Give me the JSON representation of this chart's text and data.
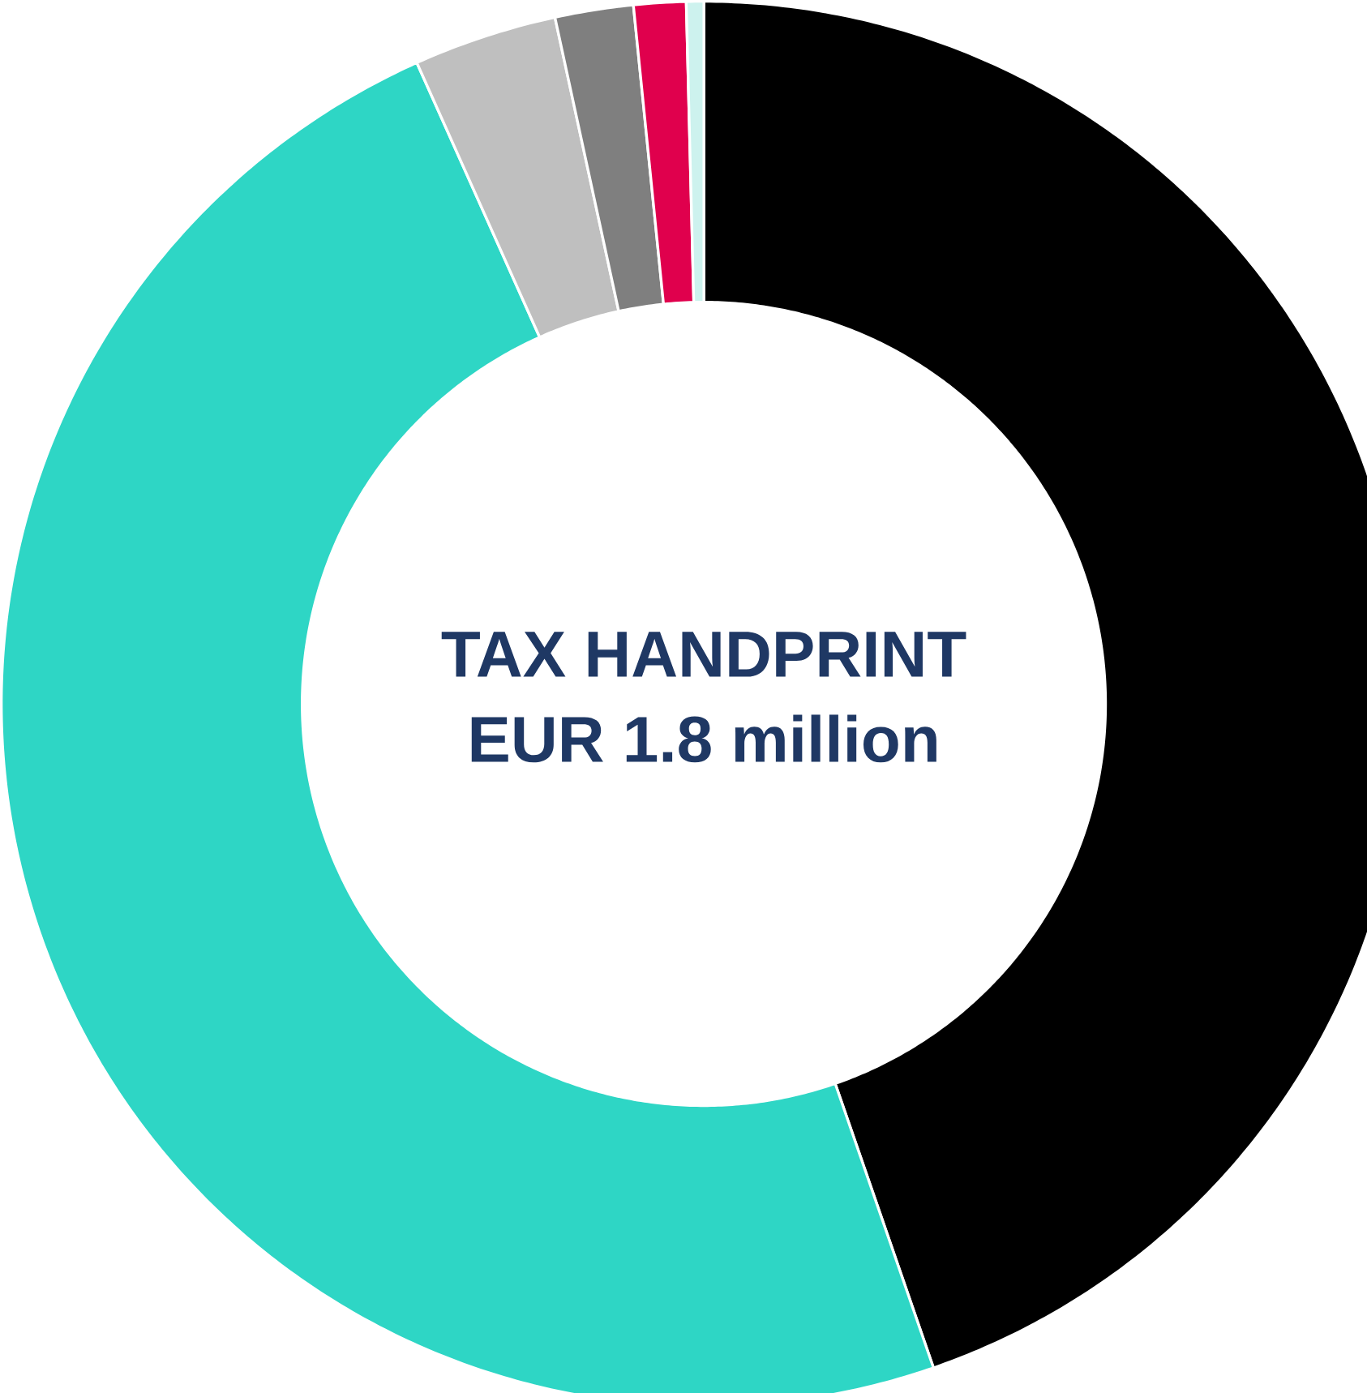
{
  "chart_data": {
    "type": "donut",
    "title": "TAX HANDPRINT",
    "subtitle": "EUR 1.8 million",
    "categories": [
      null,
      null,
      null,
      null,
      null,
      null
    ],
    "values": [
      44.7,
      48.6,
      3.3,
      1.8,
      1.2,
      0.4
    ],
    "colors": [
      "#000000",
      "#2ed6c5",
      "#bfbfbf",
      "#7f7f7f",
      "#e0004d",
      "#cdf2ee"
    ]
  }
}
